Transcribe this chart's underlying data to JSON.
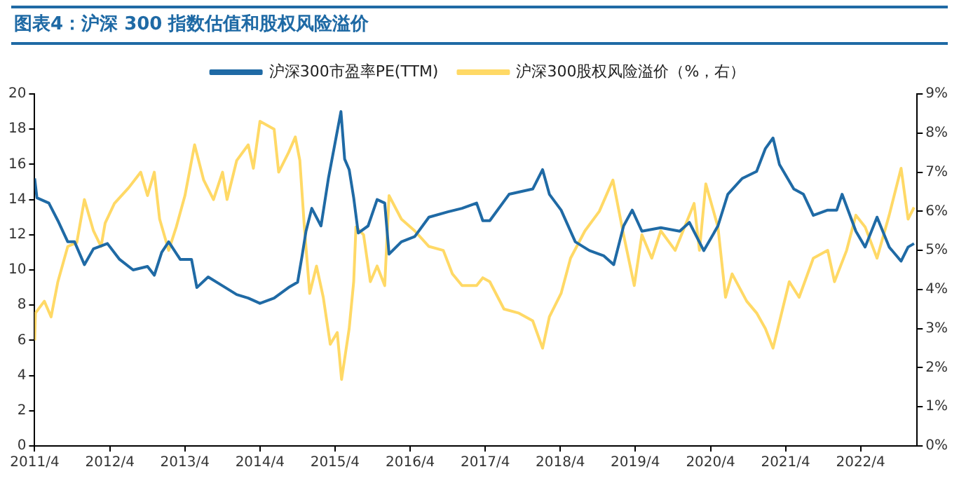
{
  "chart_data": {
    "type": "line",
    "title": "图表4：沪深 300 指数估值和股权风险溢价",
    "xlim": [
      "2011-04-01",
      "2023-01-01"
    ],
    "xticks": [
      {
        "value": "2011-04",
        "label": "2011/4"
      },
      {
        "value": "2012-04",
        "label": "2012/4"
      },
      {
        "value": "2013-04",
        "label": "2013/4"
      },
      {
        "value": "2014-04",
        "label": "2014/4"
      },
      {
        "value": "2015-04",
        "label": "2015/4"
      },
      {
        "value": "2016-04",
        "label": "2016/4"
      },
      {
        "value": "2017-04",
        "label": "2017/4"
      },
      {
        "value": "2018-04",
        "label": "2018/4"
      },
      {
        "value": "2019-04",
        "label": "2019/4"
      },
      {
        "value": "2020-04",
        "label": "2020/4"
      },
      {
        "value": "2021-04",
        "label": "2021/4"
      },
      {
        "value": "2022-04",
        "label": "2022/4"
      }
    ],
    "ylim": [
      0,
      20
    ],
    "yticks": [
      0,
      2,
      4,
      6,
      8,
      10,
      12,
      14,
      16,
      18,
      20
    ],
    "y2lim": [
      0,
      9
    ],
    "y2ticks": [
      {
        "value": 0,
        "label": "0%"
      },
      {
        "value": 1,
        "label": "1%"
      },
      {
        "value": 2,
        "label": "2%"
      },
      {
        "value": 3,
        "label": "3%"
      },
      {
        "value": 4,
        "label": "4%"
      },
      {
        "value": 5,
        "label": "5%"
      },
      {
        "value": 6,
        "label": "6%"
      },
      {
        "value": 7,
        "label": "7%"
      },
      {
        "value": 8,
        "label": "8%"
      },
      {
        "value": 9,
        "label": "9%"
      }
    ],
    "grid": false,
    "legend": "top",
    "marker": "none",
    "line_style": "solid",
    "series": [
      {
        "name": "沪深300市盈率PE(TTM)",
        "color": "#1f6aa5",
        "x": [
          "2011-04-01",
          "2011-04-12",
          "2011-06-09",
          "2011-07-23",
          "2011-09-09",
          "2011-10-12",
          "2011-11-29",
          "2012-01-12",
          "2012-03-20",
          "2012-05-18",
          "2012-07-23",
          "2012-10-01",
          "2012-11-03",
          "2012-12-09",
          "2013-01-12",
          "2013-03-09",
          "2013-05-03",
          "2013-05-29",
          "2013-07-23",
          "2013-10-01",
          "2013-12-09",
          "2014-02-03",
          "2014-04-01",
          "2014-06-09",
          "2014-08-18",
          "2014-10-01",
          "2014-10-23",
          "2014-11-11",
          "2014-12-09",
          "2015-01-23",
          "2015-02-28",
          "2015-04-01",
          "2015-04-30",
          "2015-05-18",
          "2015-06-09",
          "2015-07-01",
          "2015-07-23",
          "2015-09-09",
          "2015-10-23",
          "2015-11-29",
          "2015-12-20",
          "2016-02-18",
          "2016-04-23",
          "2016-07-01",
          "2016-10-01",
          "2016-12-09",
          "2017-02-18",
          "2017-03-20",
          "2017-04-23",
          "2017-07-26",
          "2017-11-18",
          "2018-01-05",
          "2018-02-07",
          "2018-04-05",
          "2018-06-13",
          "2018-08-21",
          "2018-10-30",
          "2018-12-17",
          "2019-02-03",
          "2019-03-17",
          "2019-05-03",
          "2019-08-03",
          "2019-11-03",
          "2019-12-20",
          "2020-02-28",
          "2020-05-07",
          "2020-06-24",
          "2020-09-02",
          "2020-11-11",
          "2020-12-24",
          "2021-01-30",
          "2021-03-02",
          "2021-05-11",
          "2021-06-27",
          "2021-08-14",
          "2021-10-23",
          "2021-12-06",
          "2022-01-01",
          "2022-03-09",
          "2022-04-23",
          "2022-06-20",
          "2022-08-18",
          "2022-10-15",
          "2022-11-18",
          "2022-12-17"
        ],
        "values": [
          15.2,
          14.1,
          13.8,
          12.8,
          11.6,
          11.6,
          10.3,
          11.2,
          11.5,
          10.6,
          10.0,
          10.2,
          9.7,
          11.0,
          11.6,
          10.6,
          10.6,
          9.0,
          9.6,
          9.1,
          8.6,
          8.4,
          8.1,
          8.4,
          9.0,
          9.3,
          10.8,
          12.2,
          13.5,
          12.5,
          15.2,
          17.2,
          19.0,
          16.3,
          15.7,
          14.1,
          12.1,
          12.5,
          14.0,
          13.8,
          10.9,
          11.6,
          11.9,
          13.0,
          13.3,
          13.5,
          13.8,
          12.8,
          12.8,
          14.3,
          14.6,
          15.7,
          14.3,
          13.4,
          11.6,
          11.1,
          10.8,
          10.3,
          12.5,
          13.4,
          12.2,
          12.4,
          12.2,
          12.7,
          11.1,
          12.5,
          14.3,
          15.2,
          15.6,
          16.9,
          17.5,
          16.0,
          14.6,
          14.3,
          13.1,
          13.4,
          13.4,
          14.3,
          12.2,
          11.3,
          13.0,
          11.3,
          10.5,
          11.3,
          11.5
        ]
      },
      {
        "name": "沪深300股权风险溢价（%，右）",
        "color": "#ffd966",
        "axis": "y2",
        "x": [
          "2011-04-01",
          "2011-04-05",
          "2011-05-18",
          "2011-06-20",
          "2011-07-23",
          "2011-09-09",
          "2011-10-23",
          "2011-11-29",
          "2012-01-12",
          "2012-02-18",
          "2012-03-09",
          "2012-04-23",
          "2012-07-01",
          "2012-08-29",
          "2012-10-01",
          "2012-11-03",
          "2012-11-29",
          "2013-01-12",
          "2013-02-18",
          "2013-04-01",
          "2013-05-18",
          "2013-07-01",
          "2013-08-18",
          "2013-10-01",
          "2013-10-23",
          "2013-12-09",
          "2014-02-03",
          "2014-02-28",
          "2014-04-01",
          "2014-06-09",
          "2014-07-01",
          "2014-08-18",
          "2014-09-20",
          "2014-10-12",
          "2014-11-03",
          "2014-11-29",
          "2015-01-01",
          "2015-02-03",
          "2015-03-09",
          "2015-04-12",
          "2015-05-03",
          "2015-06-09",
          "2015-07-01",
          "2015-07-12",
          "2015-08-18",
          "2015-09-20",
          "2015-10-23",
          "2015-11-29",
          "2015-12-20",
          "2016-02-18",
          "2016-04-23",
          "2016-07-01",
          "2016-09-09",
          "2016-10-23",
          "2016-12-09",
          "2017-02-18",
          "2017-03-20",
          "2017-04-23",
          "2017-07-01",
          "2017-09-09",
          "2017-11-18",
          "2018-01-05",
          "2018-02-07",
          "2018-04-05",
          "2018-05-21",
          "2018-07-30",
          "2018-10-08",
          "2018-12-13",
          "2019-02-03",
          "2019-03-27",
          "2019-05-03",
          "2019-06-20",
          "2019-08-03",
          "2019-10-12",
          "2020-01-12",
          "2020-02-07",
          "2020-03-09",
          "2020-05-07",
          "2020-06-13",
          "2020-07-15",
          "2020-09-24",
          "2020-11-11",
          "2020-12-24",
          "2021-01-30",
          "2021-04-19",
          "2021-06-06",
          "2021-08-14",
          "2021-10-23",
          "2021-11-25",
          "2022-01-23",
          "2022-03-09",
          "2022-04-23",
          "2022-06-20",
          "2022-08-18",
          "2022-10-15",
          "2022-11-18",
          "2022-12-17"
        ],
        "values": [
          2.7,
          3.4,
          3.7,
          3.3,
          4.2,
          5.1,
          5.2,
          6.3,
          5.5,
          5.1,
          5.7,
          6.2,
          6.6,
          7.0,
          6.4,
          7.0,
          5.8,
          5.0,
          5.6,
          6.4,
          7.7,
          6.8,
          6.3,
          7.0,
          6.3,
          7.3,
          7.7,
          7.1,
          8.3,
          8.1,
          7.0,
          7.5,
          7.9,
          7.3,
          5.6,
          3.9,
          4.6,
          3.8,
          2.6,
          2.9,
          1.7,
          3.0,
          4.2,
          5.6,
          5.4,
          4.2,
          4.6,
          4.1,
          6.4,
          5.8,
          5.5,
          5.1,
          5.0,
          4.4,
          4.1,
          4.1,
          4.3,
          4.2,
          3.5,
          3.4,
          3.2,
          2.5,
          3.3,
          3.9,
          4.8,
          5.5,
          6.0,
          6.8,
          5.4,
          4.1,
          5.4,
          4.8,
          5.5,
          5.0,
          6.2,
          5.0,
          6.7,
          5.6,
          3.8,
          4.4,
          3.7,
          3.4,
          3.0,
          2.5,
          4.2,
          3.8,
          4.8,
          5.0,
          4.2,
          5.0,
          5.9,
          5.6,
          4.8,
          5.9,
          7.1,
          5.8,
          6.1
        ]
      }
    ]
  }
}
